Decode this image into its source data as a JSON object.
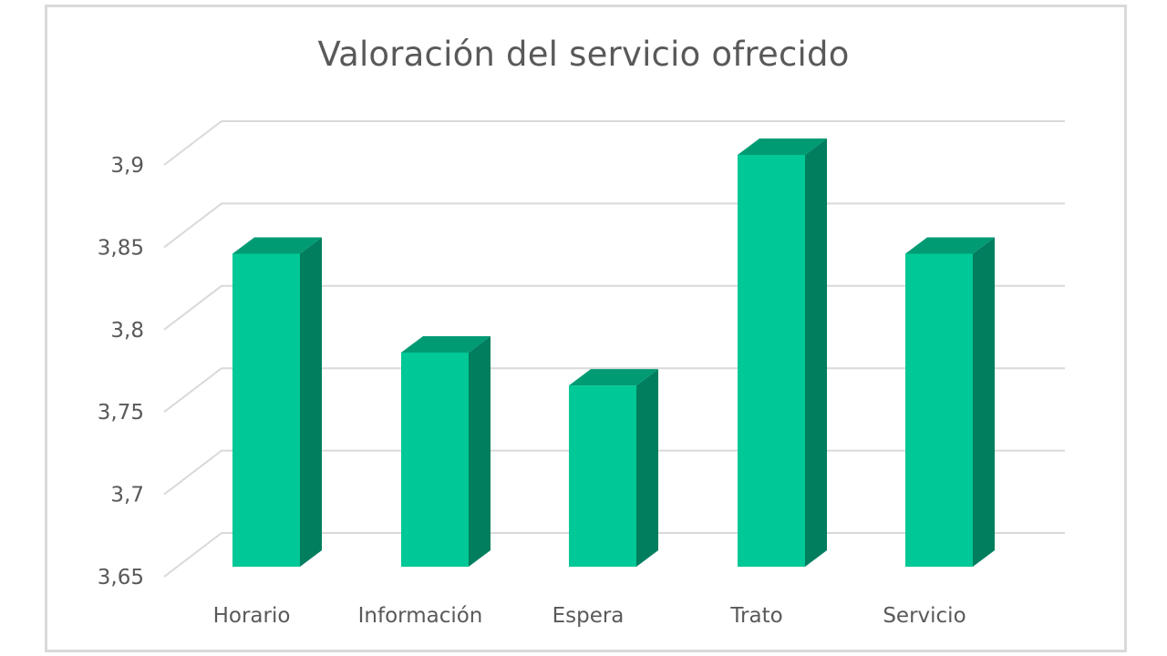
{
  "chart_data": {
    "type": "bar",
    "style": "3d-column",
    "title": "Valoración del servicio ofrecido",
    "xlabel": "",
    "ylabel": "",
    "categories": [
      "Horario",
      "Información",
      "Espera",
      "Trato",
      "Servicio"
    ],
    "values": [
      3.84,
      3.78,
      3.76,
      3.9,
      3.84
    ],
    "ylim": [
      3.65,
      3.9
    ],
    "yticks": [
      "3,65",
      "3,7",
      "3,75",
      "3,8",
      "3,85",
      "3,9"
    ],
    "grid": true,
    "legend": null,
    "colors": {
      "bar_front": "#00c896",
      "bar_top": "#009b73",
      "bar_side": "#007e5e",
      "gridline": "#d9d9d9",
      "text": "#595959"
    }
  }
}
